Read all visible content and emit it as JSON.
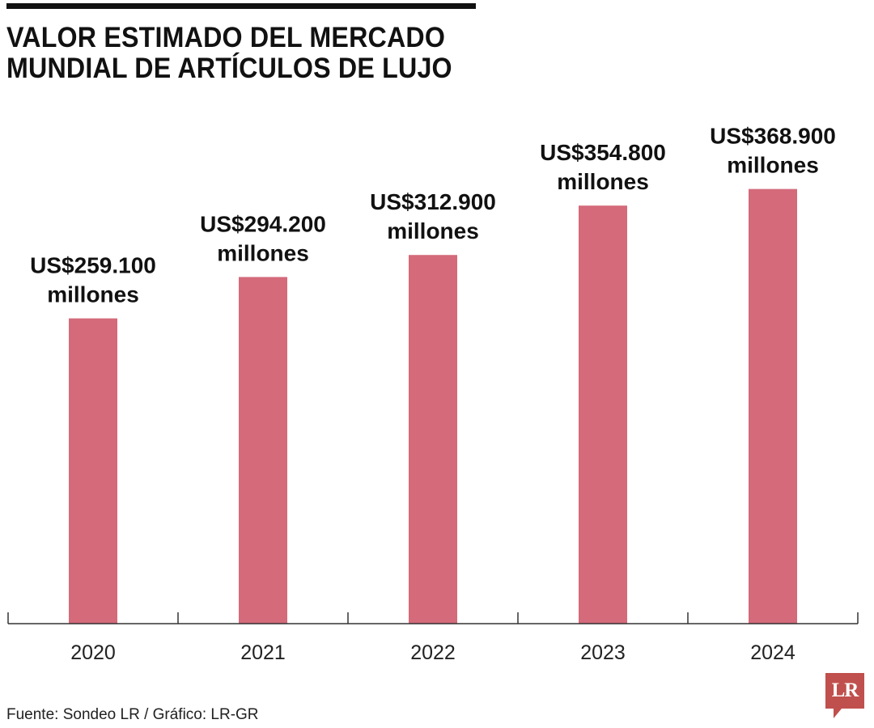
{
  "chart_data": {
    "type": "bar",
    "title": "VALOR ESTIMADO DEL MERCADO MUNDIAL DE ARTÍCULOS DE LUJO",
    "categories": [
      "2020",
      "2021",
      "2022",
      "2023",
      "2024"
    ],
    "values": [
      259100,
      294200,
      312900,
      354800,
      368900
    ],
    "data_labels": [
      [
        "US$259.100",
        "millones"
      ],
      [
        "US$294.200",
        "millones"
      ],
      [
        "US$312.900",
        "millones"
      ],
      [
        "US$354.800",
        "millones"
      ],
      [
        "US$368.900",
        "millones"
      ]
    ],
    "xlabel": "",
    "ylabel": "",
    "ylim": [
      0,
      392000
    ],
    "grid": false,
    "legend": "none",
    "bar_color": "#d46a7a"
  },
  "footer": {
    "source": "Fuente: Sondeo LR / Gráfico: LR-GR"
  },
  "logo": {
    "text": "LR",
    "color": "#c0504d"
  }
}
